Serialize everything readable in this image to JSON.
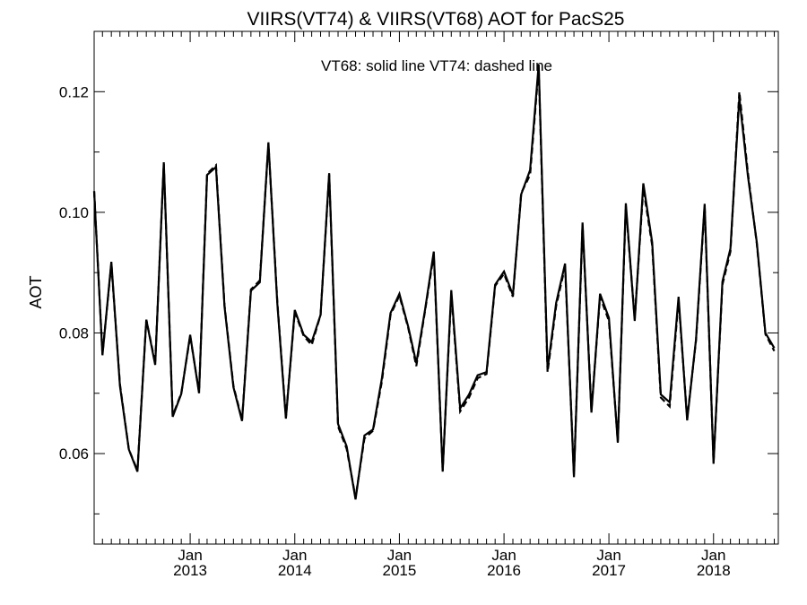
{
  "chart_data": {
    "type": "line",
    "title": "VIIRS(VT74) & VIIRS(VT68)  AOT for PacS25",
    "annotation": "VT68: solid line   VT74: dashed line",
    "xlabel": "",
    "ylabel": "AOT",
    "xlim": [
      "2012-02-01",
      "2018-08-15"
    ],
    "ylim": [
      0.045,
      0.13
    ],
    "grid": false,
    "y_ticks": [
      0.06,
      0.08,
      0.1,
      0.12
    ],
    "y_tick_labels": [
      "0.06",
      "0.08",
      "0.10",
      "0.12"
    ],
    "x_ticks": [
      {
        "date": "2013-01-01",
        "month": "Jan",
        "year": "2013"
      },
      {
        "date": "2014-01-01",
        "month": "Jan",
        "year": "2014"
      },
      {
        "date": "2015-01-01",
        "month": "Jan",
        "year": "2015"
      },
      {
        "date": "2016-01-01",
        "month": "Jan",
        "year": "2016"
      },
      {
        "date": "2017-01-01",
        "month": "Jan",
        "year": "2017"
      },
      {
        "date": "2018-01-01",
        "month": "Jan",
        "year": "2018"
      }
    ],
    "x": [
      "2012-02-01",
      "2012-03-01",
      "2012-04-01",
      "2012-05-01",
      "2012-06-01",
      "2012-07-01",
      "2012-08-01",
      "2012-09-01",
      "2012-10-01",
      "2012-11-01",
      "2012-12-01",
      "2013-01-01",
      "2013-02-01",
      "2013-03-01",
      "2013-04-01",
      "2013-05-01",
      "2013-06-01",
      "2013-07-01",
      "2013-08-01",
      "2013-09-01",
      "2013-10-01",
      "2013-11-01",
      "2013-12-01",
      "2014-01-01",
      "2014-02-01",
      "2014-03-01",
      "2014-04-01",
      "2014-05-01",
      "2014-06-01",
      "2014-07-01",
      "2014-08-01",
      "2014-09-01",
      "2014-10-01",
      "2014-11-01",
      "2014-12-01",
      "2015-01-01",
      "2015-02-01",
      "2015-03-01",
      "2015-04-01",
      "2015-05-01",
      "2015-06-01",
      "2015-07-01",
      "2015-08-01",
      "2015-09-01",
      "2015-10-01",
      "2015-11-01",
      "2015-12-01",
      "2016-01-01",
      "2016-02-01",
      "2016-03-01",
      "2016-04-01",
      "2016-05-01",
      "2016-06-01",
      "2016-07-01",
      "2016-08-01",
      "2016-09-01",
      "2016-10-01",
      "2016-11-01",
      "2016-12-01",
      "2017-01-01",
      "2017-02-01",
      "2017-03-01",
      "2017-04-01",
      "2017-05-01",
      "2017-06-01",
      "2017-07-01",
      "2017-08-01",
      "2017-09-01",
      "2017-10-01",
      "2017-11-01",
      "2017-12-01",
      "2018-01-01",
      "2018-02-01",
      "2018-03-01",
      "2018-04-01",
      "2018-05-01",
      "2018-06-01",
      "2018-07-01",
      "2018-08-01"
    ],
    "series": [
      {
        "name": "VT68",
        "values": [
          0.1035,
          0.0763,
          0.0918,
          0.0712,
          0.0607,
          0.057,
          0.0822,
          0.0747,
          0.1083,
          0.0661,
          0.0699,
          0.0797,
          0.07,
          0.1062,
          0.1075,
          0.0843,
          0.071,
          0.0654,
          0.087,
          0.0884,
          0.1116,
          0.0849,
          0.0658,
          0.0838,
          0.0797,
          0.0785,
          0.083,
          0.1065,
          0.0649,
          0.0612,
          0.0524,
          0.063,
          0.064,
          0.0725,
          0.0833,
          0.0865,
          0.081,
          0.075,
          0.084,
          0.0935,
          0.057,
          0.0871,
          0.0675,
          0.0698,
          0.073,
          0.0735,
          0.088,
          0.0902,
          0.0863,
          0.103,
          0.107,
          0.1245,
          0.074,
          0.085,
          0.0915,
          0.0561,
          0.0983,
          0.0668,
          0.0865,
          0.0825,
          0.0618,
          0.1015,
          0.082,
          0.1048,
          0.095,
          0.0698,
          0.0685,
          0.086,
          0.0655,
          0.079,
          0.1014,
          0.0583,
          0.0885,
          0.094,
          0.119,
          0.106,
          0.095,
          0.08,
          0.0775
        ]
      },
      {
        "name": "VT74",
        "values": [
          0.1035,
          0.0765,
          0.0915,
          0.0715,
          0.0607,
          0.0572,
          0.0822,
          0.075,
          0.108,
          0.0663,
          0.07,
          0.0795,
          0.0702,
          0.1064,
          0.1078,
          0.0845,
          0.0712,
          0.0656,
          0.0872,
          0.0887,
          0.1114,
          0.0852,
          0.066,
          0.0835,
          0.0795,
          0.078,
          0.083,
          0.1063,
          0.0645,
          0.0608,
          0.0527,
          0.0625,
          0.0638,
          0.072,
          0.083,
          0.0862,
          0.0808,
          0.0745,
          0.0838,
          0.093,
          0.0572,
          0.0866,
          0.067,
          0.0693,
          0.0725,
          0.0732,
          0.0878,
          0.0898,
          0.086,
          0.1032,
          0.1062,
          0.124,
          0.0735,
          0.0845,
          0.091,
          0.0565,
          0.0978,
          0.0672,
          0.086,
          0.082,
          0.062,
          0.101,
          0.0823,
          0.104,
          0.0945,
          0.0693,
          0.0678,
          0.0855,
          0.0658,
          0.0788,
          0.101,
          0.0585,
          0.088,
          0.0935,
          0.12,
          0.1065,
          0.0948,
          0.0798,
          0.077
        ]
      }
    ]
  }
}
